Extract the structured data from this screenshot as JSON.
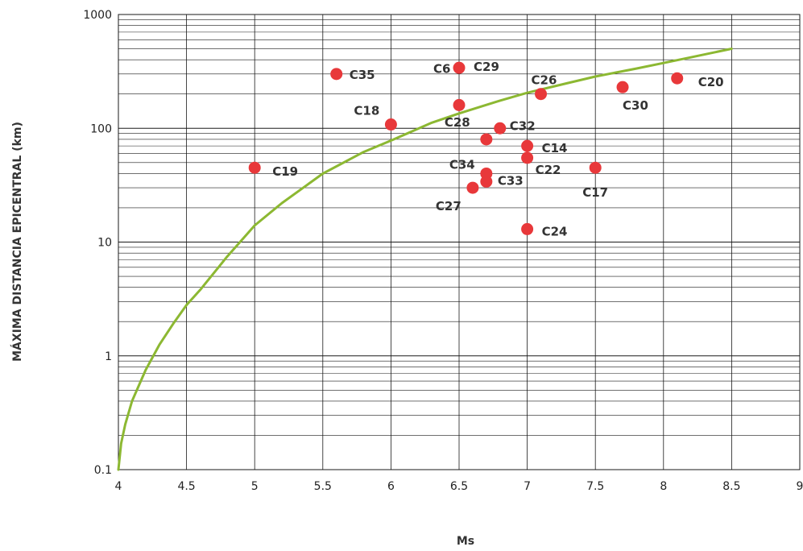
{
  "chart_data": {
    "type": "scatter",
    "xlabel": "Ms",
    "ylabel": "MÁXIMA DISTANCIA EPICENTRAL (km)",
    "xlim": [
      4,
      9
    ],
    "ylim": [
      0.1,
      1000
    ],
    "y_scale": "log",
    "x_ticks": [
      "4",
      "4.5",
      "5",
      "5.5",
      "6",
      "6.5",
      "7",
      "7.5",
      "8",
      "8.5",
      "9"
    ],
    "y_ticks": [
      "0.1",
      "1",
      "10",
      "100",
      "1000"
    ],
    "grid": true,
    "colors": {
      "points": "#e8383a",
      "curve": "#8cb832",
      "grid": "#1a1a1a"
    },
    "points": [
      {
        "label": "C35",
        "x": 5.6,
        "y": 300
      },
      {
        "label": "C29",
        "x": 6.5,
        "y": 340
      },
      {
        "label": "C26",
        "x": 7.1,
        "y": 200
      },
      {
        "label": "C6",
        "x": 6.5,
        "y": 160
      },
      {
        "label": "C30",
        "x": 7.7,
        "y": 230
      },
      {
        "label": "C20",
        "x": 8.1,
        "y": 275
      },
      {
        "label": "C18",
        "x": 6.0,
        "y": 108
      },
      {
        "label": "C32",
        "x": 6.8,
        "y": 100
      },
      {
        "label": "C28",
        "x": 6.7,
        "y": 80
      },
      {
        "label": "C14",
        "x": 7.0,
        "y": 70
      },
      {
        "label": "C22",
        "x": 7.0,
        "y": 55
      },
      {
        "label": "C19",
        "x": 5.0,
        "y": 45
      },
      {
        "label": "C17",
        "x": 7.5,
        "y": 45
      },
      {
        "label": "C34",
        "x": 6.7,
        "y": 40
      },
      {
        "label": "C33",
        "x": 6.7,
        "y": 34
      },
      {
        "label": "C27",
        "x": 6.6,
        "y": 30
      },
      {
        "label": "C24",
        "x": 7.0,
        "y": 13
      }
    ],
    "curve": {
      "x": [
        4.0,
        4.02,
        4.05,
        4.1,
        4.2,
        4.3,
        4.4,
        4.5,
        4.6,
        4.8,
        5.0,
        5.2,
        5.5,
        5.8,
        6.0,
        6.3,
        6.5,
        6.8,
        7.0,
        7.3,
        7.5,
        7.8,
        8.0,
        8.2,
        8.5
      ],
      "y": [
        0.1,
        0.17,
        0.25,
        0.4,
        0.75,
        1.25,
        1.9,
        2.8,
        3.8,
        7.5,
        14,
        22,
        40,
        62,
        78,
        112,
        135,
        175,
        205,
        250,
        285,
        335,
        375,
        420,
        500
      ]
    }
  }
}
